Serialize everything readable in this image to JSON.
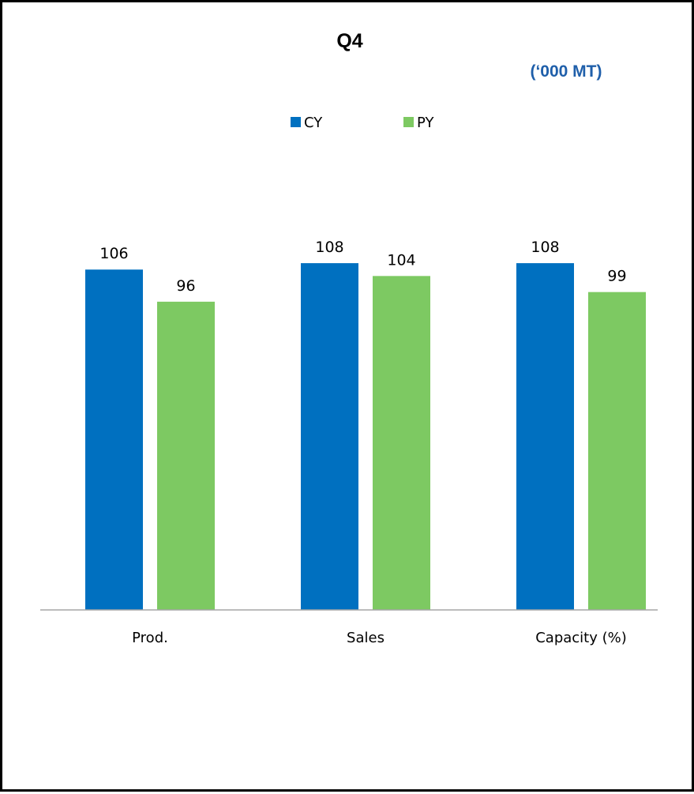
{
  "colors": {
    "cy": "#0070C0",
    "py": "#7DC962",
    "unit": "#1F5FAA",
    "axis": "#A6A6A6"
  },
  "chart_data": {
    "type": "bar",
    "title": "Q4",
    "subtitle": "(‘000 MT)",
    "categories": [
      "Prod.",
      "Sales",
      "Capacity (%)"
    ],
    "series": [
      {
        "name": "CY",
        "values": [
          106,
          108,
          108
        ]
      },
      {
        "name": "PY",
        "values": [
          96,
          104,
          99
        ]
      }
    ],
    "ylim": [
      0,
      172
    ],
    "grid": false,
    "legend_position": "top-center"
  }
}
